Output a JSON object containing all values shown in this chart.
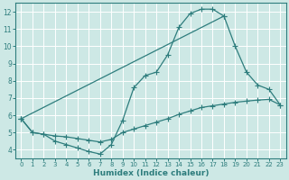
{
  "background_color": "#cde8e5",
  "grid_color": "#b0d4d0",
  "line_color": "#2e7d7d",
  "xlabel": "Humidex (Indice chaleur)",
  "xlim": [
    -0.5,
    23.5
  ],
  "ylim": [
    3.5,
    12.5
  ],
  "xticks": [
    0,
    1,
    2,
    3,
    4,
    5,
    6,
    7,
    8,
    9,
    10,
    11,
    12,
    13,
    14,
    15,
    16,
    17,
    18,
    19,
    20,
    21,
    22,
    23
  ],
  "yticks": [
    4,
    5,
    6,
    7,
    8,
    9,
    10,
    11,
    12
  ],
  "curve1_x": [
    0,
    1,
    2,
    3,
    4,
    5,
    6,
    7,
    8,
    9,
    10,
    11,
    12,
    13,
    14,
    15,
    16,
    17,
    18
  ],
  "curve1_y": [
    5.8,
    5.0,
    4.9,
    4.5,
    4.3,
    4.1,
    3.9,
    3.75,
    4.3,
    5.7,
    7.6,
    8.3,
    8.5,
    9.5,
    11.1,
    11.9,
    12.15,
    12.15,
    11.75
  ],
  "curve2_x": [
    0,
    1,
    2,
    3,
    4,
    5,
    6,
    7,
    8,
    9,
    10,
    11,
    12,
    13,
    14,
    15,
    16,
    17,
    18,
    19,
    20,
    21,
    22,
    23
  ],
  "curve2_y": [
    5.8,
    5.0,
    4.9,
    4.8,
    4.75,
    4.65,
    4.55,
    4.45,
    4.6,
    5.0,
    5.2,
    5.4,
    5.6,
    5.8,
    6.05,
    6.25,
    6.45,
    6.55,
    6.65,
    6.75,
    6.82,
    6.88,
    6.92,
    6.6
  ],
  "curve3_x": [
    0,
    18,
    19,
    20,
    21,
    22,
    23
  ],
  "curve3_y": [
    5.8,
    11.75,
    10.0,
    8.5,
    7.75,
    7.5,
    6.6
  ]
}
